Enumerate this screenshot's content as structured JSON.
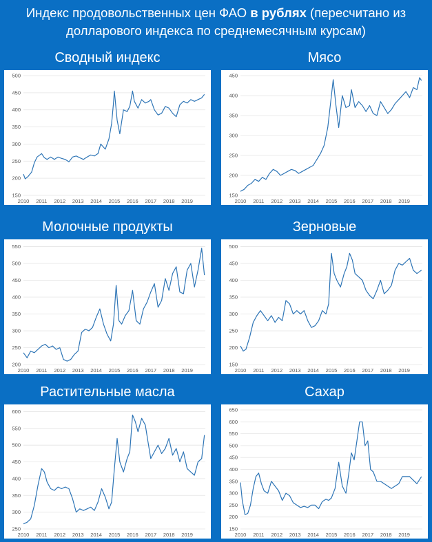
{
  "header": {
    "title_part1": "Индекс продовольственных цен ФАО ",
    "title_bold": "в рублях",
    "title_part2": " (пересчитано из",
    "title_line2": "долларового индекса по среднемесячным курсам)"
  },
  "colors": {
    "background": "#0a6fc4",
    "line": "#2e75b6",
    "plot_bg": "#ffffff"
  },
  "chart_data": [
    {
      "type": "line",
      "title": "Сводный индекс",
      "x_ticks": [
        "2010",
        "2011",
        "2012",
        "2013",
        "2014",
        "2015",
        "2016",
        "2017",
        "2018",
        "2019"
      ],
      "y_ticks": [
        150,
        200,
        250,
        300,
        350,
        400,
        450,
        500
      ],
      "ylim": [
        150,
        500
      ],
      "xlim": [
        2010,
        2020
      ],
      "series": [
        {
          "x": [
            2010.0,
            2010.1,
            2010.25,
            2010.45,
            2010.6,
            2010.75,
            2011.0,
            2011.15,
            2011.3,
            2011.5,
            2011.7,
            2011.9,
            2012.1,
            2012.3,
            2012.5,
            2012.7,
            2012.9,
            2013.1,
            2013.3,
            2013.5,
            2013.7,
            2013.9,
            2014.1,
            2014.25,
            2014.5,
            2014.7,
            2014.85,
            2014.95,
            2015.0,
            2015.15,
            2015.3,
            2015.5,
            2015.7,
            2015.85,
            2016.0,
            2016.1,
            2016.3,
            2016.5,
            2016.7,
            2016.9,
            2017.0,
            2017.2,
            2017.4,
            2017.6,
            2017.8,
            2018.0,
            2018.2,
            2018.4,
            2018.6,
            2018.8,
            2019.0,
            2019.2,
            2019.4,
            2019.6,
            2019.8,
            2019.95
          ],
          "values": [
            212,
            198,
            205,
            218,
            245,
            262,
            272,
            260,
            255,
            262,
            255,
            262,
            258,
            255,
            248,
            262,
            265,
            260,
            255,
            262,
            268,
            265,
            272,
            300,
            285,
            315,
            360,
            420,
            455,
            370,
            330,
            400,
            395,
            410,
            455,
            425,
            405,
            430,
            420,
            425,
            430,
            400,
            385,
            390,
            410,
            405,
            390,
            380,
            415,
            425,
            420,
            430,
            425,
            430,
            435,
            445
          ]
        }
      ]
    },
    {
      "type": "line",
      "title": "Мясо",
      "x_ticks": [
        "2010",
        "2011",
        "2012",
        "2013",
        "2014",
        "2015",
        "2016",
        "2017",
        "2018",
        "2019"
      ],
      "y_ticks": [
        150,
        200,
        250,
        300,
        350,
        400,
        450
      ],
      "ylim": [
        150,
        450
      ],
      "xlim": [
        2010,
        2020
      ],
      "series": [
        {
          "x": [
            2010.0,
            2010.2,
            2010.4,
            2010.6,
            2010.8,
            2011.0,
            2011.2,
            2011.4,
            2011.6,
            2011.8,
            2012.0,
            2012.2,
            2012.4,
            2012.6,
            2012.8,
            2013.0,
            2013.2,
            2013.4,
            2013.6,
            2013.8,
            2014.0,
            2014.2,
            2014.4,
            2014.6,
            2014.8,
            2014.95,
            2015.1,
            2015.25,
            2015.4,
            2015.6,
            2015.8,
            2016.0,
            2016.1,
            2016.3,
            2016.5,
            2016.7,
            2016.9,
            2017.1,
            2017.3,
            2017.5,
            2017.7,
            2017.9,
            2018.1,
            2018.3,
            2018.5,
            2018.7,
            2018.9,
            2019.1,
            2019.3,
            2019.5,
            2019.7,
            2019.85,
            2019.95
          ],
          "values": [
            160,
            165,
            175,
            180,
            190,
            185,
            195,
            190,
            205,
            215,
            210,
            200,
            205,
            210,
            215,
            212,
            205,
            210,
            215,
            220,
            225,
            240,
            255,
            275,
            320,
            380,
            440,
            375,
            320,
            400,
            370,
            375,
            415,
            370,
            385,
            375,
            360,
            375,
            355,
            350,
            385,
            370,
            355,
            365,
            380,
            390,
            400,
            410,
            395,
            420,
            415,
            445,
            438
          ]
        }
      ]
    },
    {
      "type": "line",
      "title": "Молочные продукты",
      "x_ticks": [
        "2010",
        "2011",
        "2012",
        "2013",
        "2014",
        "2015",
        "2016",
        "2017",
        "2018",
        "2019"
      ],
      "y_ticks": [
        200,
        250,
        300,
        350,
        400,
        450,
        500,
        550
      ],
      "ylim": [
        200,
        555
      ],
      "xlim": [
        2010,
        2020
      ],
      "series": [
        {
          "x": [
            2010.0,
            2010.2,
            2010.4,
            2010.6,
            2010.8,
            2011.0,
            2011.2,
            2011.4,
            2011.6,
            2011.8,
            2012.0,
            2012.2,
            2012.4,
            2012.6,
            2012.8,
            2013.0,
            2013.2,
            2013.4,
            2013.6,
            2013.8,
            2014.0,
            2014.2,
            2014.4,
            2014.6,
            2014.8,
            2014.95,
            2015.1,
            2015.25,
            2015.4,
            2015.6,
            2015.8,
            2016.0,
            2016.2,
            2016.4,
            2016.6,
            2016.8,
            2017.0,
            2017.2,
            2017.4,
            2017.6,
            2017.8,
            2018.0,
            2018.2,
            2018.4,
            2018.6,
            2018.8,
            2019.0,
            2019.2,
            2019.4,
            2019.6,
            2019.8,
            2019.95
          ],
          "values": [
            235,
            220,
            240,
            235,
            245,
            255,
            260,
            250,
            255,
            245,
            250,
            215,
            210,
            215,
            230,
            240,
            295,
            305,
            300,
            310,
            340,
            365,
            320,
            290,
            270,
            320,
            435,
            330,
            320,
            345,
            360,
            420,
            330,
            320,
            365,
            385,
            415,
            440,
            370,
            390,
            455,
            420,
            470,
            490,
            415,
            410,
            480,
            500,
            430,
            480,
            545,
            465
          ]
        }
      ]
    },
    {
      "type": "line",
      "title": "Зерновые",
      "x_ticks": [
        "2010",
        "2011",
        "2012",
        "2013",
        "2014",
        "2015",
        "2016",
        "2017",
        "2018",
        "2019"
      ],
      "y_ticks": [
        150,
        200,
        250,
        300,
        350,
        400,
        450,
        500
      ],
      "ylim": [
        150,
        505
      ],
      "xlim": [
        2010,
        2020
      ],
      "series": [
        {
          "x": [
            2010.0,
            2010.15,
            2010.3,
            2010.5,
            2010.7,
            2010.9,
            2011.1,
            2011.3,
            2011.5,
            2011.7,
            2011.9,
            2012.1,
            2012.3,
            2012.5,
            2012.7,
            2012.9,
            2013.1,
            2013.3,
            2013.5,
            2013.7,
            2013.9,
            2014.1,
            2014.3,
            2014.5,
            2014.7,
            2014.85,
            2015.0,
            2015.15,
            2015.3,
            2015.5,
            2015.7,
            2015.85,
            2016.0,
            2016.15,
            2016.3,
            2016.5,
            2016.7,
            2016.9,
            2017.1,
            2017.3,
            2017.5,
            2017.7,
            2017.9,
            2018.1,
            2018.3,
            2018.5,
            2018.7,
            2018.9,
            2019.1,
            2019.3,
            2019.5,
            2019.7,
            2019.95
          ],
          "values": [
            205,
            190,
            195,
            230,
            275,
            295,
            310,
            295,
            280,
            295,
            275,
            290,
            280,
            340,
            330,
            300,
            310,
            300,
            310,
            280,
            260,
            265,
            280,
            310,
            300,
            330,
            480,
            420,
            400,
            380,
            420,
            440,
            480,
            460,
            420,
            410,
            400,
            370,
            355,
            345,
            370,
            400,
            360,
            370,
            385,
            430,
            450,
            445,
            455,
            465,
            430,
            420,
            430
          ]
        }
      ]
    },
    {
      "type": "line",
      "title": "Растительные масла",
      "x_ticks": [
        "2010",
        "2011",
        "2012",
        "2013",
        "2014",
        "2015",
        "2016",
        "2017",
        "2018",
        "2019"
      ],
      "y_ticks": [
        250,
        300,
        350,
        400,
        450,
        500,
        550,
        600
      ],
      "ylim": [
        250,
        605
      ],
      "xlim": [
        2010,
        2020
      ],
      "series": [
        {
          "x": [
            2010.0,
            2010.2,
            2010.4,
            2010.6,
            2010.8,
            2011.0,
            2011.15,
            2011.3,
            2011.5,
            2011.7,
            2011.9,
            2012.1,
            2012.3,
            2012.5,
            2012.7,
            2012.9,
            2013.1,
            2013.3,
            2013.5,
            2013.7,
            2013.9,
            2014.1,
            2014.3,
            2014.5,
            2014.7,
            2014.85,
            2015.0,
            2015.15,
            2015.3,
            2015.5,
            2015.7,
            2015.85,
            2016.0,
            2016.15,
            2016.3,
            2016.5,
            2016.7,
            2016.85,
            2017.0,
            2017.2,
            2017.4,
            2017.6,
            2017.8,
            2018.0,
            2018.2,
            2018.4,
            2018.6,
            2018.8,
            2019.0,
            2019.2,
            2019.4,
            2019.6,
            2019.8,
            2019.95
          ],
          "values": [
            265,
            270,
            280,
            320,
            380,
            430,
            420,
            390,
            370,
            365,
            375,
            370,
            375,
            370,
            340,
            300,
            310,
            305,
            310,
            315,
            305,
            330,
            370,
            345,
            310,
            330,
            430,
            520,
            450,
            420,
            460,
            480,
            590,
            570,
            540,
            580,
            560,
            510,
            460,
            480,
            500,
            475,
            490,
            520,
            470,
            490,
            450,
            480,
            430,
            420,
            410,
            450,
            460,
            530
          ]
        }
      ]
    },
    {
      "type": "line",
      "title": "Сахар",
      "x_ticks": [
        "2010",
        "2011",
        "2012",
        "2013",
        "2014",
        "2015",
        "2016",
        "2017",
        "2018",
        "2019"
      ],
      "y_ticks": [
        150,
        200,
        250,
        300,
        350,
        400,
        450,
        500,
        550,
        600,
        650
      ],
      "ylim": [
        150,
        650
      ],
      "xlim": [
        2010,
        2020
      ],
      "series": [
        {
          "x": [
            2010.0,
            2010.1,
            2010.25,
            2010.4,
            2010.55,
            2010.7,
            2010.85,
            2011.0,
            2011.15,
            2011.3,
            2011.5,
            2011.7,
            2011.9,
            2012.1,
            2012.3,
            2012.5,
            2012.7,
            2012.9,
            2013.1,
            2013.3,
            2013.5,
            2013.7,
            2013.9,
            2014.1,
            2014.3,
            2014.5,
            2014.7,
            2014.85,
            2015.0,
            2015.2,
            2015.4,
            2015.6,
            2015.8,
            2015.95,
            2016.1,
            2016.25,
            2016.4,
            2016.55,
            2016.7,
            2016.85,
            2017.0,
            2017.15,
            2017.3,
            2017.5,
            2017.7,
            2017.9,
            2018.1,
            2018.3,
            2018.5,
            2018.7,
            2018.9,
            2019.1,
            2019.3,
            2019.5,
            2019.7,
            2019.95
          ],
          "values": [
            345,
            270,
            210,
            215,
            250,
            320,
            370,
            385,
            340,
            310,
            300,
            350,
            330,
            310,
            270,
            300,
            290,
            260,
            250,
            240,
            245,
            240,
            250,
            250,
            235,
            265,
            275,
            270,
            280,
            320,
            430,
            330,
            300,
            380,
            470,
            440,
            520,
            600,
            600,
            500,
            520,
            400,
            390,
            350,
            350,
            340,
            330,
            320,
            330,
            340,
            370,
            370,
            370,
            355,
            340,
            370
          ]
        }
      ]
    }
  ]
}
